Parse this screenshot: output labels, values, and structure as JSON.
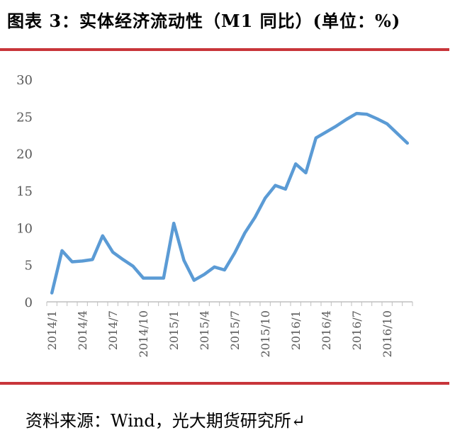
{
  "title": "图表 3：实体经济流动性（M1 同比）(单位：%)",
  "source": "资料来源：Wind，光大期货研究所↵",
  "colors": {
    "accent_rule": "#c8353a",
    "line": "#5b9bd5",
    "axis": "#bfbfbf",
    "text": "#595959"
  },
  "chart_data": {
    "type": "line",
    "title": "",
    "xlabel": "",
    "ylabel": "",
    "ylim": [
      0,
      30
    ],
    "yticks": [
      0,
      5,
      10,
      15,
      20,
      25,
      30
    ],
    "grid": false,
    "legend": "none",
    "x": [
      "2014/1",
      "2014/2",
      "2014/3",
      "2014/4",
      "2014/5",
      "2014/6",
      "2014/7",
      "2014/8",
      "2014/9",
      "2014/10",
      "2014/11",
      "2014/12",
      "2015/1",
      "2015/2",
      "2015/3",
      "2015/4",
      "2015/5",
      "2015/6",
      "2015/7",
      "2015/8",
      "2015/9",
      "2015/10",
      "2015/11",
      "2015/12",
      "2016/1",
      "2016/2",
      "2016/3",
      "2016/4",
      "2016/5",
      "2016/6",
      "2016/7",
      "2016/8",
      "2016/9",
      "2016/10",
      "2016/11",
      "2016/12"
    ],
    "xtick_labels": [
      "2014/1",
      "2014/4",
      "2014/7",
      "2014/10",
      "2015/1",
      "2015/4",
      "2015/7",
      "2015/10",
      "2016/1",
      "2016/4",
      "2016/7",
      "2016/10"
    ],
    "series": [
      {
        "values": [
          1.2,
          6.9,
          5.4,
          5.5,
          5.7,
          8.9,
          6.7,
          5.7,
          4.8,
          3.2,
          3.2,
          3.2,
          10.6,
          5.6,
          2.9,
          3.7,
          4.7,
          4.3,
          6.6,
          9.3,
          11.4,
          14.0,
          15.7,
          15.2,
          18.6,
          17.4,
          22.1,
          22.9,
          23.7,
          24.6,
          25.4,
          25.3,
          24.7,
          24.0,
          22.7,
          21.4
        ]
      }
    ]
  }
}
